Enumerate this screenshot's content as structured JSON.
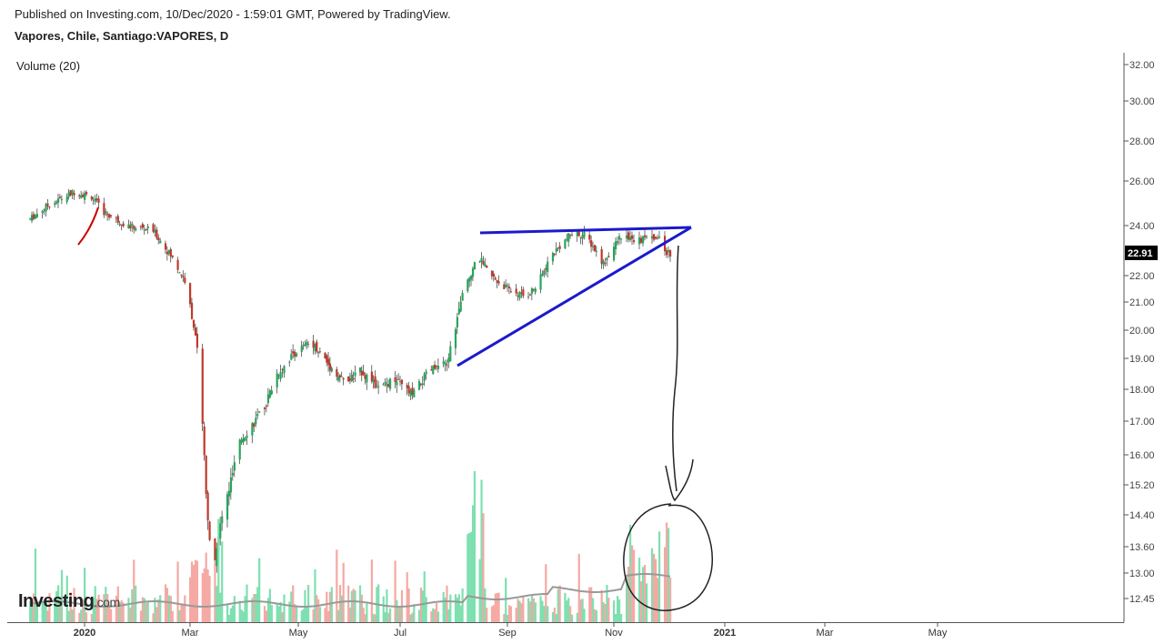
{
  "header": {
    "published": "Published on Investing.com, 10/Dec/2020 - 1:59:01 GMT, Powered by TradingView.",
    "symbol": "Vapores, Chile, Santiago:VAPORES, D"
  },
  "volume_label": "Volume (20)",
  "logo": {
    "brand": "Investing",
    "suffix": ".com"
  },
  "colors": {
    "up": "#26a65b",
    "down": "#c0392b",
    "vol_up": "#7ee0b0",
    "vol_down": "#f5a9a4",
    "trend": "#1a1acc",
    "price_tag": "#000000",
    "vol_ma": "#999999"
  },
  "chart_data": {
    "type": "candlestick",
    "title": "Vapores, Chile, Santiago:VAPORES, D",
    "last_price": "22.91",
    "y_ticks": [
      "32.00",
      "30.00",
      "28.00",
      "26.00",
      "24.00",
      "22.00",
      "21.00",
      "20.00",
      "19.00",
      "18.00",
      "17.00",
      "16.00",
      "15.20",
      "14.40",
      "13.60",
      "13.00",
      "12.45"
    ],
    "x_ticks": [
      "2020",
      "Mar",
      "May",
      "Jul",
      "Sep",
      "Nov",
      "2021",
      "Mar",
      "May"
    ],
    "series": [
      {
        "name": "Price",
        "close_approx": [
          {
            "date": "2019-12",
            "value": 24.5
          },
          {
            "date": "2020-01",
            "value": 25.4
          },
          {
            "date": "2020-02",
            "value": 23.5
          },
          {
            "date": "2020-03",
            "value": 13.0
          },
          {
            "date": "2020-04",
            "value": 17.8
          },
          {
            "date": "2020-05",
            "value": 19.5
          },
          {
            "date": "2020-06",
            "value": 18.2
          },
          {
            "date": "2020-07",
            "value": 18.0
          },
          {
            "date": "2020-08",
            "value": 22.5
          },
          {
            "date": "2020-09",
            "value": 21.3
          },
          {
            "date": "2020-10",
            "value": 23.8
          },
          {
            "date": "2020-11",
            "value": 23.6
          },
          {
            "date": "2020-12",
            "value": 22.91
          }
        ]
      }
    ],
    "annotations": [
      "ascending triangle",
      "arrow pointing to circled volume"
    ]
  }
}
